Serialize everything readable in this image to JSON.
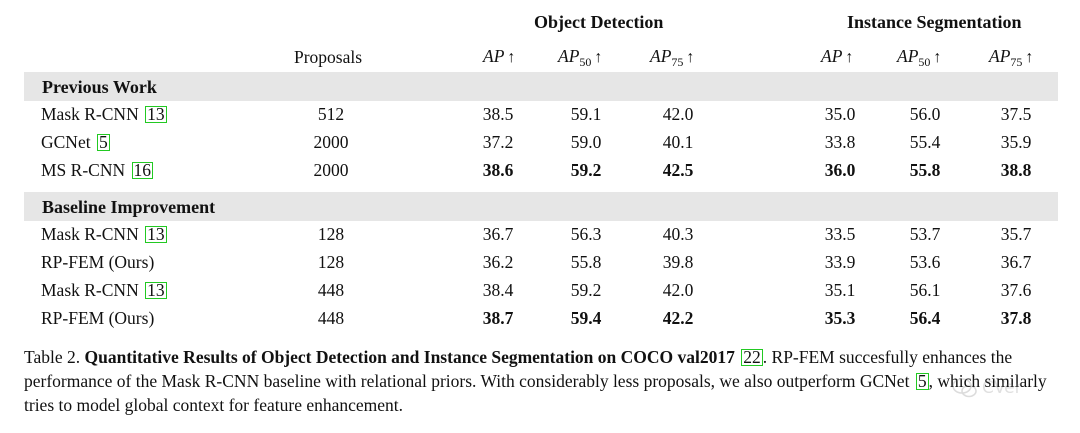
{
  "header": {
    "group_detection": "Object Detection",
    "group_segmentation": "Instance Segmentation",
    "col_proposals": "Proposals",
    "ap": "AP",
    "ap50_sub": "50",
    "ap75_sub": "75",
    "arrow": "↑"
  },
  "sections": [
    {
      "label": "Previous Work",
      "rows": [
        {
          "method": "Mask R-CNN ",
          "ref": "13",
          "suffix": "",
          "proposals": "512",
          "values": [
            "38.5",
            "59.1",
            "42.0",
            "35.0",
            "56.0",
            "37.5"
          ],
          "bold": [
            false,
            false,
            false,
            false,
            false,
            false
          ]
        },
        {
          "method": "GCNet ",
          "ref": "5",
          "suffix": "",
          "proposals": "2000",
          "values": [
            "37.2",
            "59.0",
            "40.1",
            "33.8",
            "55.4",
            "35.9"
          ],
          "bold": [
            false,
            false,
            false,
            false,
            false,
            false
          ]
        },
        {
          "method": "MS R-CNN ",
          "ref": "16",
          "suffix": "",
          "proposals": "2000",
          "values": [
            "38.6",
            "59.2",
            "42.5",
            "36.0",
            "55.8",
            "38.8"
          ],
          "bold": [
            true,
            true,
            true,
            true,
            true,
            true
          ]
        }
      ]
    },
    {
      "label": "Baseline Improvement",
      "rows": [
        {
          "method": "Mask R-CNN ",
          "ref": "13",
          "suffix": "",
          "proposals": "128",
          "values": [
            "36.7",
            "56.3",
            "40.3",
            "33.5",
            "53.7",
            "35.7"
          ],
          "bold": [
            false,
            false,
            false,
            false,
            false,
            false
          ]
        },
        {
          "method": "RP-FEM (Ours)",
          "ref": "",
          "suffix": "",
          "proposals": "128",
          "values": [
            "36.2",
            "55.8",
            "39.8",
            "33.9",
            "53.6",
            "36.7"
          ],
          "bold": [
            false,
            false,
            false,
            false,
            false,
            false
          ]
        },
        {
          "method": "Mask R-CNN ",
          "ref": "13",
          "suffix": "",
          "proposals": "448",
          "values": [
            "38.4",
            "59.2",
            "42.0",
            "35.1",
            "56.1",
            "37.6"
          ],
          "bold": [
            false,
            false,
            false,
            false,
            false,
            false
          ]
        },
        {
          "method": "RP-FEM (Ours)",
          "ref": "",
          "suffix": "",
          "proposals": "448",
          "values": [
            "38.7",
            "59.4",
            "42.2",
            "35.3",
            "56.4",
            "37.8"
          ],
          "bold": [
            true,
            true,
            true,
            true,
            true,
            true
          ]
        }
      ]
    }
  ],
  "caption": {
    "prefix": "Table 2. ",
    "bold": "Quantitative Results of Object Detection and Instance Segmentation on COCO val2017",
    "ref": "22",
    "text1": ". RP-FEM succesfully enhances the performance of the Mask R-CNN baseline with relational priors. With considerably less proposals, we also outperform GCNet ",
    "ref2": "5",
    "text2": ", which similarly tries to model global context for feature enhancement."
  },
  "watermark": "CVer"
}
